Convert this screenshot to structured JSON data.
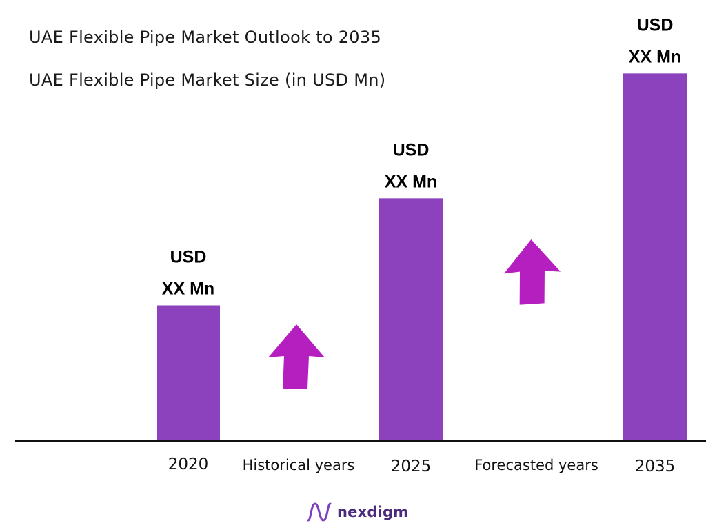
{
  "chart_data": {
    "type": "bar",
    "title": "UAE Flexible Pipe Market Outlook to 2035",
    "subtitle": "UAE Flexible Pipe Market Size (in USD Mn)",
    "categories": [
      "2020",
      "2025",
      "2035"
    ],
    "values": [
      38,
      68,
      103
    ],
    "value_labels": [
      [
        "USD",
        "XX Mn"
      ],
      [
        "USD",
        "XX Mn"
      ],
      [
        "USD",
        "XX Mn"
      ]
    ],
    "period_labels": [
      "Historical years",
      "Forecasted years"
    ],
    "bar_color": "#8b42bc",
    "arrow_color": "#b51fc0",
    "axis_color": "#111111",
    "ylim": [
      0,
      105
    ],
    "grid": false
  },
  "logo": {
    "text": "nexdigm",
    "color": "#4b2a7b",
    "mark_color": "#7b3fc0"
  }
}
